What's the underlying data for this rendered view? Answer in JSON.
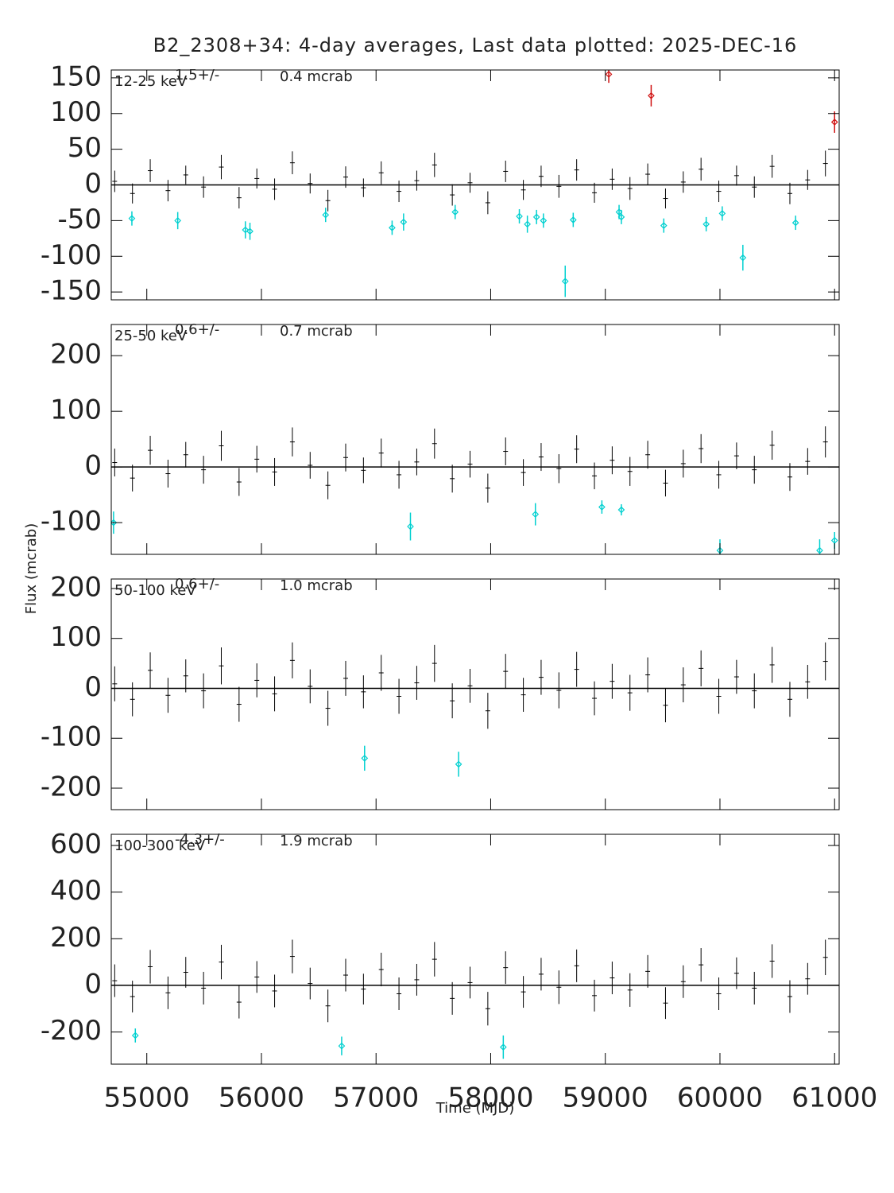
{
  "chart_data": [
    {
      "type": "errorbar",
      "title": "B2_2308+34:  4-day averages,  Last data plotted: 2025-DEC-16",
      "label": "12-25 keV",
      "annotations": [
        "1.5+/-",
        "0.4 mcrab"
      ],
      "xlim": [
        54690,
        61040
      ],
      "xticks": [
        55000,
        56000,
        57000,
        58000,
        59000,
        60000,
        61000
      ],
      "ylim": [
        -161,
        161
      ],
      "yticks": [
        -150,
        -100,
        -50,
        0,
        50,
        100,
        150
      ],
      "series": [
        {
          "color": "#000000",
          "x": [
            54720,
            54875,
            55030,
            55185,
            55340,
            55495,
            55650,
            55805,
            55960,
            56115,
            56270,
            56425,
            56580,
            56735,
            56890,
            57045,
            57200,
            57355,
            57510,
            57665,
            57820,
            57975,
            58130,
            58285,
            58440,
            58595,
            58750,
            58905,
            59060,
            59215,
            59370,
            59525,
            59680,
            59835,
            59990,
            60145,
            60300,
            60455,
            60610,
            60765,
            60920
          ],
          "values": [
            5,
            -12,
            20,
            -8,
            14,
            -3,
            25,
            -18,
            9,
            -6,
            31,
            2,
            -22,
            11,
            -4,
            17,
            -9,
            6,
            28,
            -14,
            3,
            -25,
            19,
            -7,
            12,
            -2,
            21,
            -11,
            8,
            -5,
            15,
            -19,
            4,
            22,
            -9,
            13,
            -3,
            26,
            -12,
            7,
            30
          ],
          "errors": [
            15,
            14,
            16,
            15,
            13,
            15,
            17,
            15,
            14,
            15,
            16,
            14,
            15,
            15,
            13,
            16,
            15,
            14,
            17,
            15,
            14,
            16,
            15,
            14,
            15,
            16,
            15,
            14,
            15,
            16,
            15,
            14,
            15,
            16,
            15,
            14,
            15,
            16,
            15,
            14,
            18
          ]
        },
        {
          "color": "#00d0d0",
          "x": [
            54870,
            55270,
            55860,
            55900,
            56560,
            57140,
            57240,
            57690,
            58250,
            58320,
            58400,
            58460,
            58650,
            58720,
            59120,
            59140,
            59510,
            59880,
            60020,
            60200,
            60660
          ],
          "values": [
            -47,
            -50,
            -63,
            -65,
            -42,
            -60,
            -52,
            -38,
            -44,
            -55,
            -45,
            -50,
            -135,
            -49,
            -38,
            -45,
            -57,
            -55,
            -40,
            -102,
            -53
          ],
          "errors": [
            10,
            12,
            12,
            12,
            10,
            10,
            12,
            10,
            10,
            12,
            10,
            10,
            22,
            10,
            10,
            10,
            10,
            10,
            10,
            18,
            10
          ]
        },
        {
          "color": "#d01010",
          "x": [
            59030,
            59400,
            61000
          ],
          "values": [
            155,
            125,
            88
          ],
          "errors": [
            12,
            15,
            15
          ]
        }
      ]
    },
    {
      "type": "errorbar",
      "label": "25-50 keV",
      "annotations": [
        "0.6+/-",
        "0.7 mcrab"
      ],
      "y_label": "Flux (mcrab)",
      "xlim": [
        54690,
        61040
      ],
      "xticks": [
        55000,
        56000,
        57000,
        58000,
        59000,
        60000,
        61000
      ],
      "ylim": [
        -157,
        256
      ],
      "yticks": [
        -100,
        0,
        100,
        200
      ],
      "series": [
        {
          "color": "#000000",
          "x": [
            54720,
            54875,
            55030,
            55185,
            55340,
            55495,
            55650,
            55805,
            55960,
            56115,
            56270,
            56425,
            56580,
            56735,
            56890,
            57045,
            57200,
            57355,
            57510,
            57665,
            57820,
            57975,
            58130,
            58285,
            58440,
            58595,
            58750,
            58905,
            59060,
            59215,
            59370,
            59525,
            59680,
            59835,
            59990,
            60145,
            60300,
            60455,
            60610,
            60765,
            60920
          ],
          "values": [
            8,
            -20,
            30,
            -12,
            22,
            -5,
            38,
            -27,
            14,
            -9,
            45,
            3,
            -33,
            17,
            -6,
            25,
            -14,
            9,
            42,
            -21,
            5,
            -38,
            28,
            -10,
            18,
            -3,
            32,
            -16,
            12,
            -8,
            22,
            -29,
            6,
            33,
            -14,
            20,
            -5,
            39,
            -18,
            10,
            45
          ],
          "errors": [
            25,
            24,
            26,
            25,
            23,
            25,
            27,
            25,
            24,
            25,
            26,
            24,
            25,
            25,
            23,
            26,
            25,
            24,
            27,
            25,
            24,
            26,
            25,
            24,
            25,
            26,
            25,
            24,
            25,
            26,
            25,
            24,
            25,
            26,
            25,
            24,
            25,
            26,
            25,
            24,
            28
          ]
        },
        {
          "color": "#00d0d0",
          "x": [
            54710,
            57300,
            58390,
            58970,
            59140,
            60000,
            60870,
            61000
          ],
          "values": [
            -100,
            -107,
            -85,
            -72,
            -77,
            -150,
            -150,
            -132
          ],
          "errors": [
            20,
            25,
            20,
            12,
            10,
            20,
            20,
            15
          ]
        }
      ]
    },
    {
      "type": "errorbar",
      "label": "50-100 keV",
      "annotations": [
        "0.6+/-",
        "1.0 mcrab"
      ],
      "xlim": [
        54690,
        61040
      ],
      "xticks": [
        55000,
        56000,
        57000,
        58000,
        59000,
        60000,
        61000
      ],
      "ylim": [
        -243,
        219
      ],
      "yticks": [
        -200,
        -100,
        0,
        100,
        200
      ],
      "series": [
        {
          "color": "#000000",
          "x": [
            54720,
            54875,
            55030,
            55185,
            55340,
            55495,
            55650,
            55805,
            55960,
            56115,
            56270,
            56425,
            56580,
            56735,
            56890,
            57045,
            57200,
            57355,
            57510,
            57665,
            57820,
            57975,
            58130,
            58285,
            58440,
            58595,
            58750,
            58905,
            59060,
            59215,
            59370,
            59525,
            59680,
            59835,
            59990,
            60145,
            60300,
            60455,
            60610,
            60765,
            60920
          ],
          "values": [
            9,
            -22,
            36,
            -14,
            25,
            -5,
            45,
            -32,
            16,
            -11,
            56,
            4,
            -40,
            20,
            -7,
            31,
            -16,
            11,
            50,
            -25,
            5,
            -45,
            34,
            -13,
            22,
            -4,
            38,
            -20,
            14,
            -9,
            27,
            -34,
            7,
            40,
            -16,
            23,
            -5,
            47,
            -22,
            13,
            54
          ],
          "errors": [
            35,
            34,
            36,
            35,
            33,
            35,
            37,
            35,
            34,
            35,
            36,
            34,
            35,
            35,
            33,
            36,
            35,
            34,
            37,
            35,
            34,
            36,
            35,
            34,
            35,
            36,
            35,
            34,
            35,
            36,
            35,
            34,
            35,
            36,
            35,
            34,
            35,
            36,
            35,
            34,
            38
          ]
        },
        {
          "color": "#00d0d0",
          "x": [
            56900,
            57720
          ],
          "values": [
            -140,
            -152
          ],
          "errors": [
            25,
            25
          ]
        }
      ]
    },
    {
      "type": "errorbar",
      "label": "100-300 keV",
      "annotations": [
        "-4.3+/-",
        "1.9 mcrab"
      ],
      "x_label": "Time (MJD)",
      "xlim": [
        54690,
        61040
      ],
      "xticks": [
        55000,
        56000,
        57000,
        58000,
        59000,
        60000,
        61000
      ],
      "ylim": [
        -338,
        648
      ],
      "yticks": [
        -200,
        0,
        200,
        400,
        600
      ],
      "series": [
        {
          "color": "#000000",
          "x": [
            54720,
            54875,
            55030,
            55185,
            55340,
            55495,
            55650,
            55805,
            55960,
            56115,
            56270,
            56425,
            56580,
            56735,
            56890,
            57045,
            57200,
            57355,
            57510,
            57665,
            57820,
            57975,
            58130,
            58285,
            58440,
            58595,
            58750,
            58905,
            59060,
            59215,
            59370,
            59525,
            59680,
            59835,
            59990,
            60145,
            60300,
            60455,
            60610,
            60765,
            60920
          ],
          "values": [
            20,
            -48,
            80,
            -32,
            56,
            -12,
            100,
            -72,
            36,
            -24,
            124,
            8,
            -88,
            44,
            -16,
            68,
            -36,
            24,
            112,
            -56,
            12,
            -100,
            76,
            -28,
            48,
            -8,
            84,
            -44,
            32,
            -20,
            60,
            -76,
            16,
            88,
            -36,
            52,
            -12,
            104,
            -48,
            28,
            120
          ],
          "errors": [
            70,
            68,
            72,
            70,
            66,
            70,
            74,
            70,
            68,
            70,
            72,
            68,
            70,
            70,
            66,
            72,
            70,
            68,
            74,
            70,
            68,
            72,
            70,
            68,
            70,
            72,
            70,
            68,
            70,
            72,
            70,
            68,
            70,
            72,
            70,
            68,
            70,
            72,
            70,
            68,
            76
          ]
        },
        {
          "color": "#00d0d0",
          "x": [
            54900,
            56700,
            58110
          ],
          "values": [
            -215,
            -260,
            -265
          ],
          "errors": [
            30,
            40,
            50
          ]
        }
      ]
    }
  ]
}
